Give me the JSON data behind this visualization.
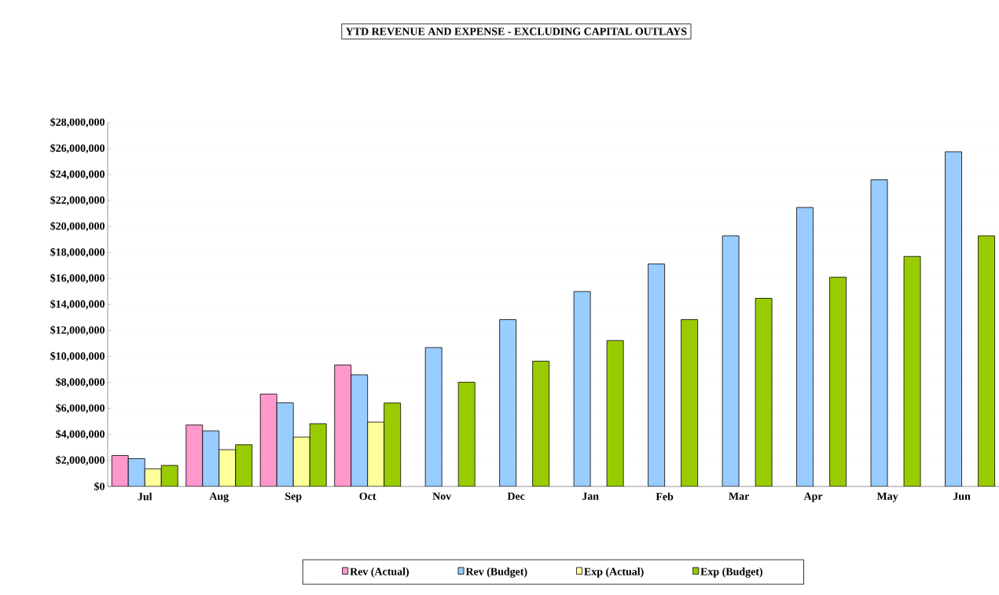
{
  "chart_data": {
    "type": "bar",
    "title": "YTD REVENUE AND EXPENSE - EXCLUDING CAPITAL OUTLAYS",
    "categories": [
      "Jul",
      "Aug",
      "Sep",
      "Oct",
      "Nov",
      "Dec",
      "Jan",
      "Feb",
      "Mar",
      "Apr",
      "May",
      "Jun"
    ],
    "series": [
      {
        "name": "Rev (Actual)",
        "color": "#ff99cc",
        "values": [
          2380000,
          4730000,
          7110000,
          9350000,
          null,
          null,
          null,
          null,
          null,
          null,
          null,
          null
        ]
      },
      {
        "name": "Rev (Budget)",
        "color": "#99ccff",
        "values": [
          2140000,
          4280000,
          6440000,
          8590000,
          10690000,
          12840000,
          15000000,
          17120000,
          19290000,
          21470000,
          23600000,
          25760000
        ]
      },
      {
        "name": "Exp (Actual)",
        "color": "#ffff99",
        "values": [
          1350000,
          2830000,
          3800000,
          4950000,
          null,
          null,
          null,
          null,
          null,
          null,
          null,
          null
        ]
      },
      {
        "name": "Exp (Budget)",
        "color": "#99cc00",
        "values": [
          1620000,
          3210000,
          4830000,
          6420000,
          8020000,
          9640000,
          11230000,
          12840000,
          14480000,
          16100000,
          17700000,
          19290000
        ]
      }
    ],
    "ylim": [
      0,
      28000000
    ],
    "yticks": [
      {
        "value": 0,
        "label": "$0"
      },
      {
        "value": 2000000,
        "label": "$2,000,000"
      },
      {
        "value": 4000000,
        "label": "$4,000,000"
      },
      {
        "value": 6000000,
        "label": "$6,000,000"
      },
      {
        "value": 8000000,
        "label": "$8,000,000"
      },
      {
        "value": 10000000,
        "label": "$10,000,000"
      },
      {
        "value": 12000000,
        "label": "$12,000,000"
      },
      {
        "value": 14000000,
        "label": "$14,000,000"
      },
      {
        "value": 16000000,
        "label": "$16,000,000"
      },
      {
        "value": 18000000,
        "label": "$18,000,000"
      },
      {
        "value": 20000000,
        "label": "$20,000,000"
      },
      {
        "value": 22000000,
        "label": "$22,000,000"
      },
      {
        "value": 24000000,
        "label": "$24,000,000"
      },
      {
        "value": 26000000,
        "label": "$26,000,000"
      },
      {
        "value": 28000000,
        "label": "$28,000,000"
      }
    ],
    "grid": "y",
    "legend": "bottom"
  }
}
